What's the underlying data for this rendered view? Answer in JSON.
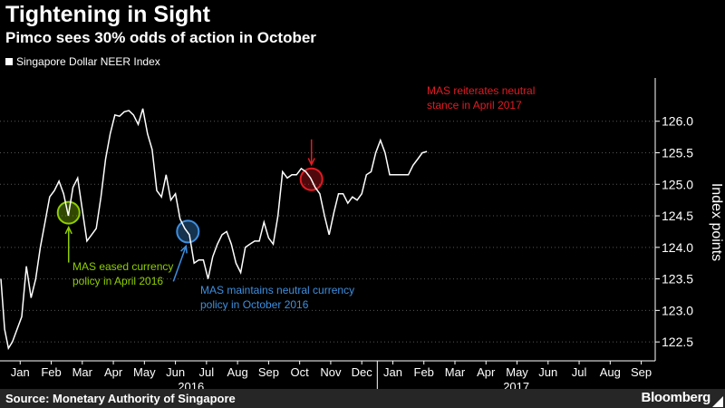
{
  "header": {
    "title": "Tightening in Sight",
    "subtitle": "Pimco sees 30% odds of action in October"
  },
  "legend": {
    "label": "Singapore Dollar NEER Index"
  },
  "footer": {
    "source": "Source: Monetary Authority of Singapore",
    "brand": "Bloomberg"
  },
  "colors": {
    "background": "#000000",
    "line": "#ffffff",
    "green": "#8fce00",
    "blue": "#3d8fe0",
    "red": "#e31b23",
    "grid": "#555555"
  },
  "chart_data": {
    "type": "line",
    "title": "Tightening in Sight",
    "subtitle": "Pimco sees 30% odds of action in October",
    "ylabel": "Index points",
    "ylim": [
      122.2,
      126.6
    ],
    "yticks": [
      122.5,
      123.0,
      123.5,
      124.0,
      124.5,
      125.0,
      125.5,
      126.0
    ],
    "grid": "horizontal dotted",
    "xlim": [
      0.35,
      21.45
    ],
    "month_labels": [
      "Jan",
      "Feb",
      "Mar",
      "Apr",
      "May",
      "Jun",
      "Jul",
      "Aug",
      "Sep",
      "Oct",
      "Nov",
      "Dec",
      "Jan",
      "Feb",
      "Mar",
      "Apr",
      "May",
      "Jun",
      "Jul",
      "Aug",
      "Sep"
    ],
    "years": [
      {
        "label": "2016",
        "start": 0.5,
        "end": 12.5
      },
      {
        "label": "2017",
        "start": 12.5,
        "end": 21.5
      }
    ],
    "series": [
      {
        "name": "Singapore Dollar NEER Index",
        "points": [
          [
            0.38,
            123.5
          ],
          [
            0.5,
            122.7
          ],
          [
            0.62,
            122.4
          ],
          [
            0.75,
            122.5
          ],
          [
            0.9,
            122.7
          ],
          [
            1.05,
            122.9
          ],
          [
            1.2,
            123.7
          ],
          [
            1.35,
            123.2
          ],
          [
            1.5,
            123.5
          ],
          [
            1.65,
            124.0
          ],
          [
            1.8,
            124.4
          ],
          [
            1.95,
            124.8
          ],
          [
            2.1,
            124.9
          ],
          [
            2.25,
            125.05
          ],
          [
            2.4,
            124.85
          ],
          [
            2.55,
            124.5
          ],
          [
            2.7,
            124.95
          ],
          [
            2.85,
            125.1
          ],
          [
            3.0,
            124.6
          ],
          [
            3.15,
            124.1
          ],
          [
            3.3,
            124.2
          ],
          [
            3.45,
            124.3
          ],
          [
            3.6,
            124.8
          ],
          [
            3.75,
            125.4
          ],
          [
            3.9,
            125.8
          ],
          [
            4.05,
            126.1
          ],
          [
            4.2,
            126.08
          ],
          [
            4.35,
            126.15
          ],
          [
            4.5,
            126.17
          ],
          [
            4.65,
            126.1
          ],
          [
            4.8,
            125.95
          ],
          [
            4.95,
            126.2
          ],
          [
            5.1,
            125.8
          ],
          [
            5.25,
            125.55
          ],
          [
            5.4,
            124.9
          ],
          [
            5.55,
            124.8
          ],
          [
            5.7,
            125.15
          ],
          [
            5.85,
            124.75
          ],
          [
            6.0,
            124.85
          ],
          [
            6.15,
            124.45
          ],
          [
            6.3,
            124.3
          ],
          [
            6.45,
            124.2
          ],
          [
            6.6,
            123.75
          ],
          [
            6.75,
            123.8
          ],
          [
            6.9,
            123.8
          ],
          [
            7.05,
            123.5
          ],
          [
            7.2,
            123.85
          ],
          [
            7.35,
            124.05
          ],
          [
            7.5,
            124.2
          ],
          [
            7.65,
            124.25
          ],
          [
            7.8,
            124.05
          ],
          [
            7.95,
            123.75
          ],
          [
            8.1,
            123.6
          ],
          [
            8.25,
            124.0
          ],
          [
            8.4,
            124.05
          ],
          [
            8.55,
            124.1
          ],
          [
            8.7,
            124.1
          ],
          [
            8.85,
            124.4
          ],
          [
            9.0,
            124.15
          ],
          [
            9.15,
            124.05
          ],
          [
            9.3,
            124.5
          ],
          [
            9.45,
            125.2
          ],
          [
            9.6,
            125.1
          ],
          [
            9.75,
            125.15
          ],
          [
            9.9,
            125.15
          ],
          [
            10.05,
            125.25
          ],
          [
            10.2,
            125.2
          ],
          [
            10.35,
            125.1
          ],
          [
            10.5,
            124.95
          ],
          [
            10.65,
            124.85
          ],
          [
            10.8,
            124.5
          ],
          [
            10.95,
            124.2
          ],
          [
            11.1,
            124.55
          ],
          [
            11.25,
            124.85
          ],
          [
            11.4,
            124.85
          ],
          [
            11.55,
            124.7
          ],
          [
            11.7,
            124.8
          ],
          [
            11.85,
            124.75
          ],
          [
            12.0,
            124.85
          ],
          [
            12.15,
            125.15
          ],
          [
            12.3,
            125.2
          ],
          [
            12.45,
            125.5
          ],
          [
            12.6,
            125.7
          ],
          [
            12.75,
            125.5
          ],
          [
            12.9,
            125.15
          ],
          [
            13.05,
            125.15
          ],
          [
            13.2,
            125.15
          ],
          [
            13.35,
            125.15
          ],
          [
            13.5,
            125.15
          ],
          [
            13.65,
            125.3
          ],
          [
            13.8,
            125.4
          ],
          [
            13.95,
            125.5
          ],
          [
            14.1,
            125.52
          ]
        ]
      }
    ],
    "annotations": [
      {
        "id": "green",
        "lines": [
          "MAS eased currency",
          "policy in April 2016"
        ],
        "marker": [
          2.56,
          124.55
        ],
        "color": "#8fce00"
      },
      {
        "id": "blue",
        "lines": [
          "MAS maintains neutral currency",
          "policy in October 2016"
        ],
        "marker": [
          6.4,
          124.25
        ],
        "color": "#3d8fe0"
      },
      {
        "id": "red",
        "lines": [
          "MAS reiterates neutral",
          "stance in April 2017"
        ],
        "marker": [
          10.38,
          125.08
        ],
        "color": "#e31b23"
      }
    ]
  }
}
